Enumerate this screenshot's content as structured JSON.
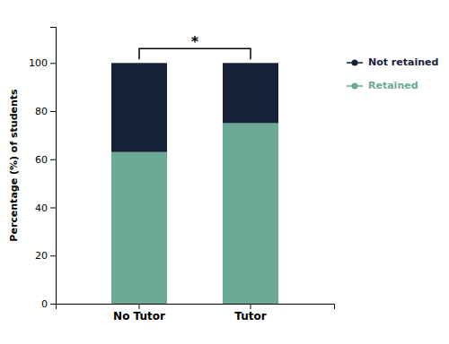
{
  "chart_data": {
    "type": "bar",
    "stacked": true,
    "categories": [
      "No Tutor",
      "Tutor"
    ],
    "series": [
      {
        "name": "Retained",
        "color": "#6aaa96",
        "values": [
          63,
          75
        ]
      },
      {
        "name": "Not retained",
        "color": "#17213a",
        "values": [
          37,
          25
        ]
      }
    ],
    "y_label": "Percentage (%) of students",
    "ylim": [
      0,
      115
    ],
    "yticks": [
      0,
      20,
      40,
      60,
      80,
      100
    ],
    "grid": false,
    "legend": "right",
    "annotations": [
      {
        "text": "*"
      }
    ]
  }
}
